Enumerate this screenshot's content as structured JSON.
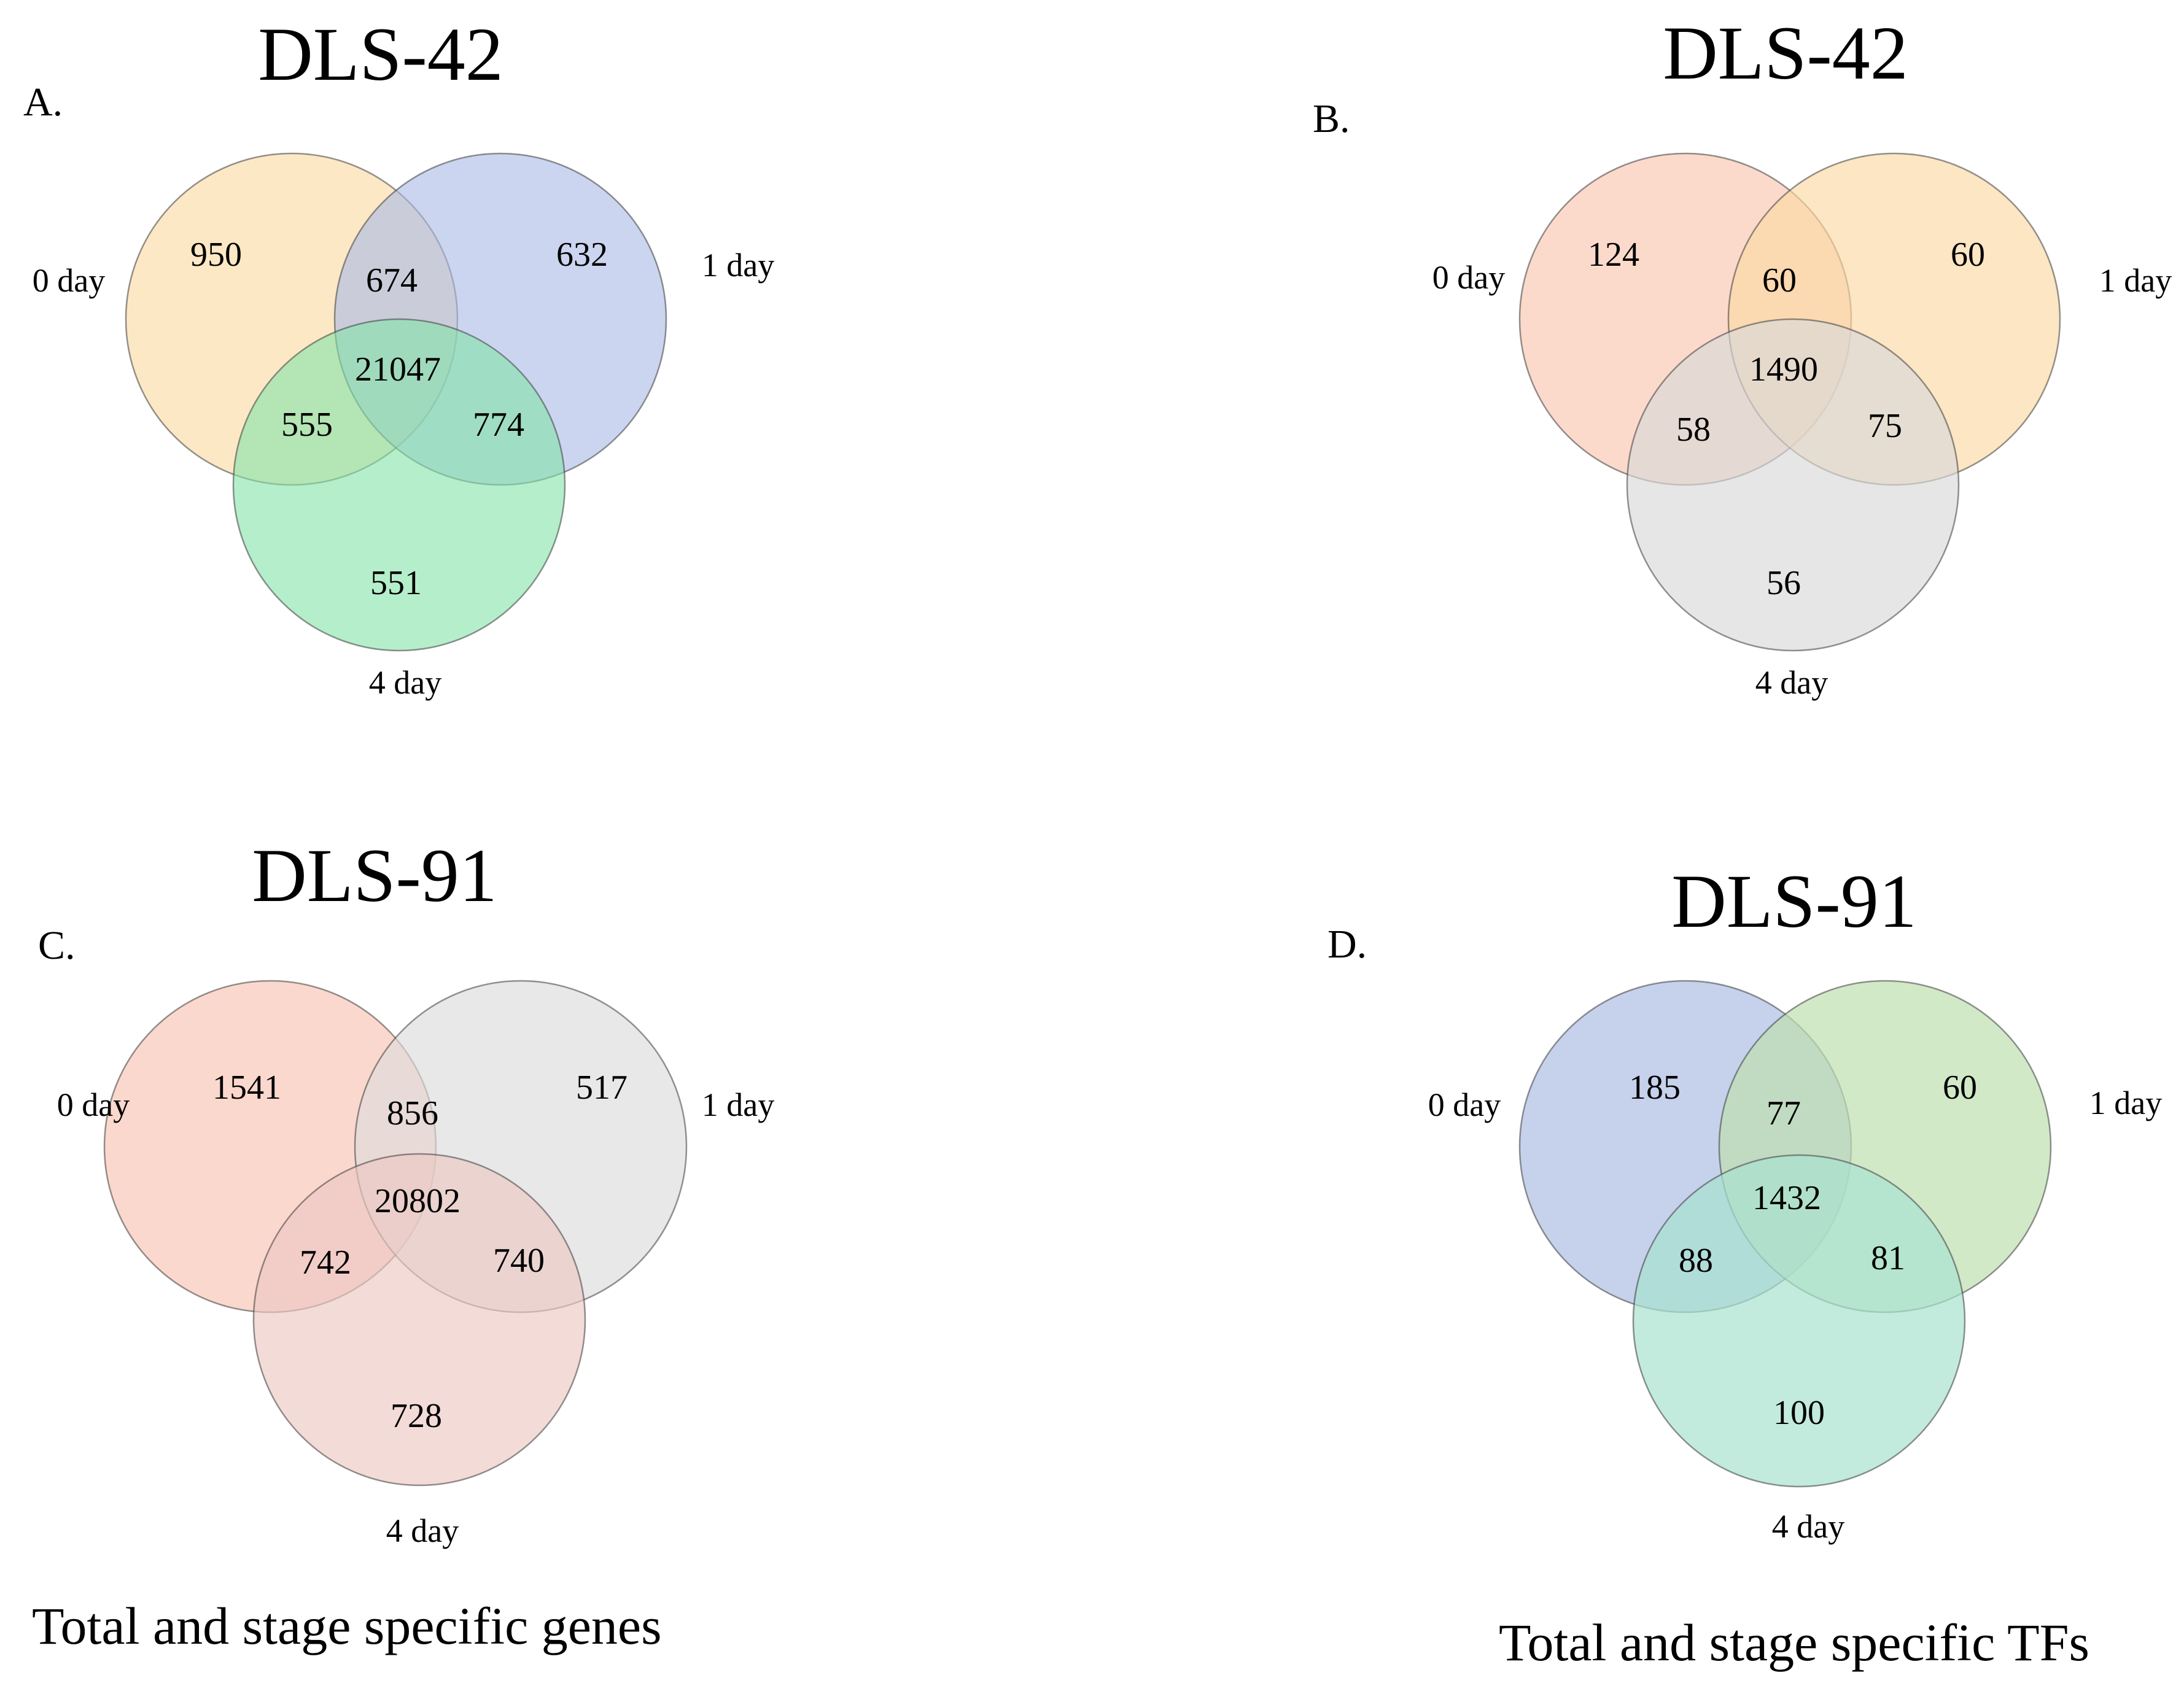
{
  "panels": [
    {
      "id": "A",
      "letter": "A.",
      "title": "DLS-42",
      "colors": [
        "#fcd9a0",
        "#a9b9e6",
        "#84e3a8"
      ],
      "labels": {
        "a": "0 day",
        "b": "1 day",
        "c": "4 day"
      },
      "values": {
        "a_only": "950",
        "ab": "674",
        "b_only": "632",
        "abc": "21047",
        "ac": "555",
        "bc": "774",
        "c_only": "551"
      }
    },
    {
      "id": "B",
      "letter": "B.",
      "title": "DLS-42",
      "colors": [
        "#f9c6b1",
        "#fbd9a3",
        "#d8d8d8"
      ],
      "labels": {
        "a": "0 day",
        "b": "1 day",
        "c": "4 day"
      },
      "values": {
        "a_only": "124",
        "ab": "60",
        "b_only": "60",
        "abc": "1490",
        "ac": "58",
        "bc": "75",
        "c_only": "56"
      }
    },
    {
      "id": "C",
      "letter": "C.",
      "title": "DLS-91",
      "colors": [
        "#f9c3b2",
        "#dcdcdc",
        "#edc8c3"
      ],
      "labels": {
        "a": "0 day",
        "b": "1 day",
        "c": "4 day"
      },
      "values": {
        "a_only": "1541",
        "ab": "856",
        "b_only": "517",
        "abc": "20802",
        "ac": "742",
        "bc": "740",
        "c_only": "728"
      }
    },
    {
      "id": "D",
      "letter": "D.",
      "title": "DLS-91",
      "colors": [
        "#aebde4",
        "#bfe0b0",
        "#a8e2d0"
      ],
      "labels": {
        "a": "0 day",
        "b": "1 day",
        "c": "4 day"
      },
      "values": {
        "a_only": "185",
        "ab": "77",
        "b_only": "60",
        "abc": "1432",
        "ac": "88",
        "bc": "81",
        "c_only": "100"
      }
    }
  ],
  "captions": {
    "genes": "Total and stage specific genes",
    "tfs": "Total and stage specific TFs"
  }
}
